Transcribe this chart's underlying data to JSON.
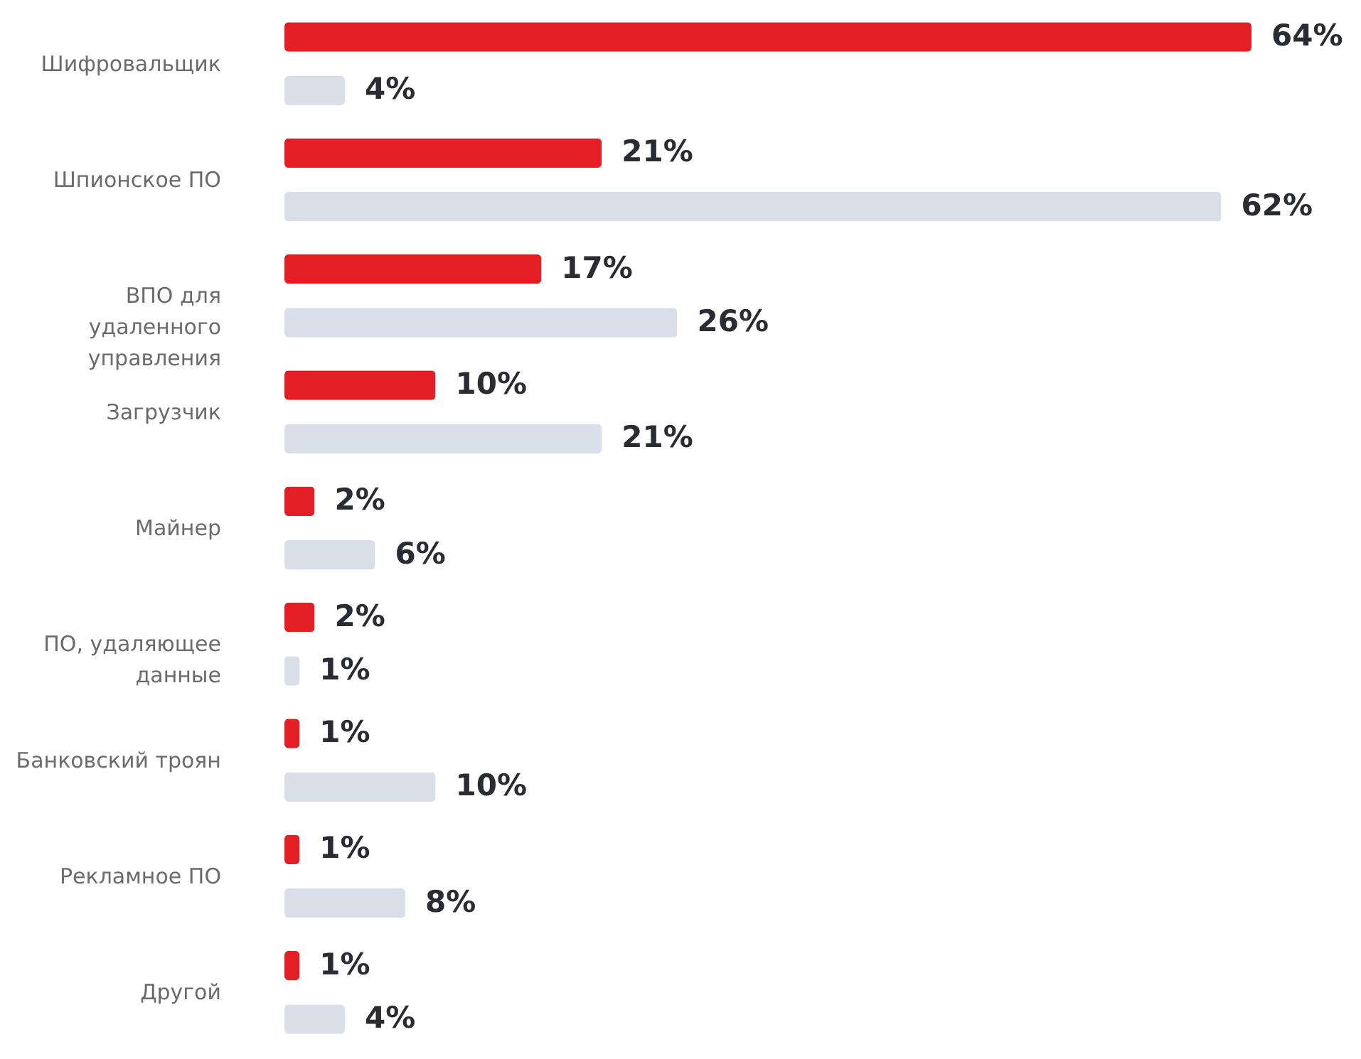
{
  "chart_data": {
    "type": "bar",
    "orientation": "horizontal",
    "legend": false,
    "tick_labels": "y",
    "categories": [
      "Шифровальщик",
      "Шпионское ПО",
      "ВПО для удаленного управления",
      "Загрузчик",
      "Майнер",
      "ПО, удаляющее данные",
      "Банковский троян",
      "Рекламное ПО",
      "Другой"
    ],
    "series": [
      {
        "color": "#e31e24",
        "values": [
          64,
          21,
          17,
          10,
          2,
          2,
          1,
          1,
          1
        ],
        "value_labels": [
          "64%",
          "21%",
          "17%",
          "10%",
          "2%",
          "2%",
          "1%",
          "1%",
          "1%"
        ]
      },
      {
        "color": "#d8dfe9",
        "values": [
          4,
          62,
          26,
          21,
          6,
          1,
          10,
          8,
          4
        ],
        "value_labels": [
          "4%",
          "62%",
          "26%",
          "21%",
          "6%",
          "1%",
          "10%",
          "8%",
          "4%"
        ]
      }
    ]
  }
}
